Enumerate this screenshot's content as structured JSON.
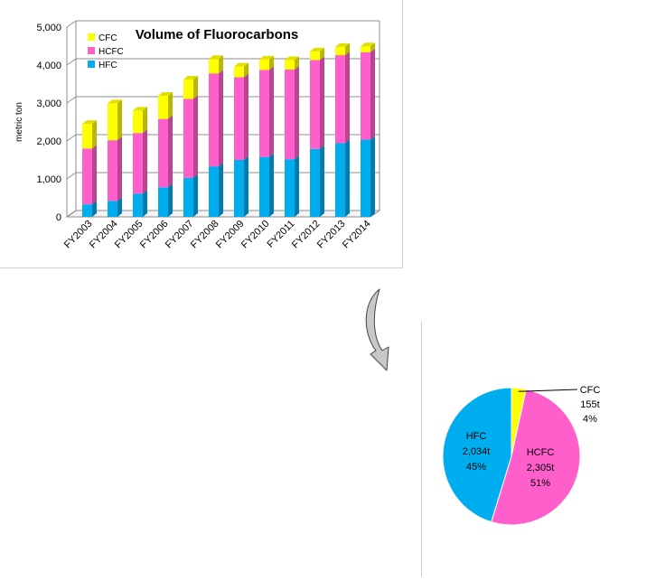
{
  "chart_data": [
    {
      "type": "bar",
      "stacked": true,
      "title": "Volume of Fluorocarbons",
      "ylabel": "metric ton",
      "ylim": [
        0,
        5000
      ],
      "yticks": [
        "0",
        "1,000",
        "2,000",
        "3,000",
        "4,000",
        "5,000"
      ],
      "ytick_values": [
        0,
        1000,
        2000,
        3000,
        4000,
        5000
      ],
      "grid": true,
      "legend_position": "top-left",
      "categories": [
        "FY2003",
        "FY2004",
        "FY2005",
        "FY2006",
        "FY2007",
        "FY2008",
        "FY2009",
        "FY2010",
        "FY2011",
        "FY2012",
        "FY2013",
        "FY2014"
      ],
      "series": [
        {
          "name": "HFC",
          "color": "#00aeef",
          "values": [
            330,
            420,
            610,
            780,
            1030,
            1330,
            1500,
            1580,
            1520,
            1790,
            1940,
            2034
          ]
        },
        {
          "name": "HCFC",
          "color": "#ff5fcb",
          "values": [
            1470,
            1600,
            1600,
            1800,
            2080,
            2450,
            2180,
            2290,
            2360,
            2340,
            2320,
            2305
          ]
        },
        {
          "name": "CFC",
          "color": "#ffff00",
          "values": [
            650,
            970,
            590,
            610,
            510,
            380,
            280,
            280,
            250,
            230,
            220,
            155
          ]
        }
      ]
    },
    {
      "type": "pie",
      "slices": [
        {
          "name": "CFC",
          "value": 155,
          "amount_label": "155t",
          "percent_label": "4%",
          "color": "#ffff00"
        },
        {
          "name": "HCFC",
          "value": 2305,
          "amount_label": "2,305t",
          "percent_label": "51%",
          "color": "#ff5fcb"
        },
        {
          "name": "HFC",
          "value": 2034,
          "amount_label": "2,034t",
          "percent_label": "45%",
          "color": "#00aeef"
        }
      ]
    }
  ],
  "colors": {
    "arrow_fill": "#c8c8c8",
    "grid": "#8c8c8c",
    "stroke": "#000000"
  },
  "icons": {
    "curved_arrow": "curved-down-arrow-icon"
  }
}
